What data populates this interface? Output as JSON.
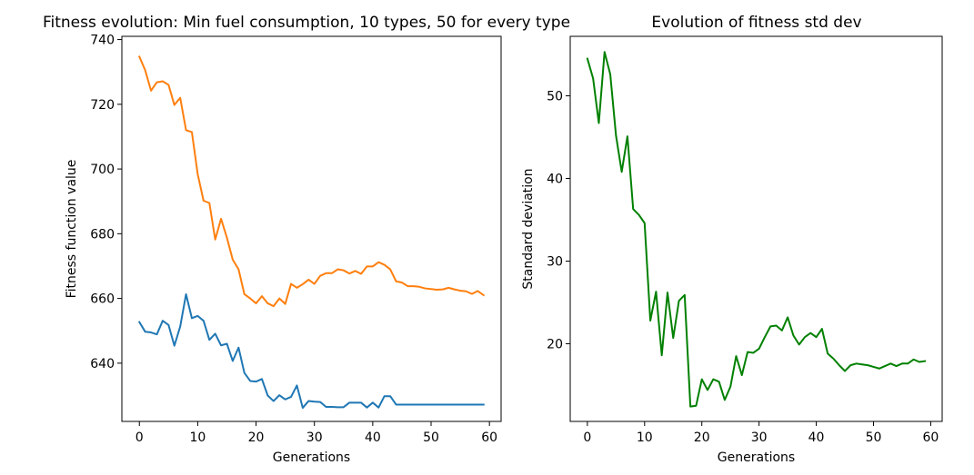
{
  "chart_data": [
    {
      "type": "line",
      "title": "Fitness evolution: Min fuel consumption, 10 types, 50 for every type",
      "xlabel": "Generations",
      "ylabel": "Fitness function value",
      "xlim": [
        -3,
        62
      ],
      "ylim": [
        622,
        741
      ],
      "xticks": [
        0,
        10,
        20,
        30,
        40,
        50,
        60
      ],
      "yticks": [
        640,
        660,
        680,
        700,
        720,
        740
      ],
      "grid": false,
      "series": [
        {
          "color": "#ff7f0e",
          "x": [
            0,
            1,
            2,
            3,
            4,
            5,
            6,
            7,
            8,
            9,
            10,
            11,
            12,
            13,
            14,
            15,
            16,
            17,
            18,
            19,
            20,
            21,
            22,
            23,
            24,
            25,
            26,
            27,
            28,
            29,
            30,
            31,
            32,
            33,
            34,
            35,
            36,
            37,
            38,
            39,
            40,
            41,
            42,
            43,
            44,
            45,
            46,
            47,
            48,
            49,
            50,
            51,
            52,
            53,
            54,
            55,
            56,
            57,
            58,
            59
          ],
          "values": [
            734.7,
            730.5,
            724.2,
            726.8,
            727.1,
            726.0,
            719.8,
            722.0,
            712.0,
            711.4,
            698.4,
            690.2,
            689.5,
            678.2,
            684.6,
            678.8,
            672.0,
            669.0,
            661.3,
            660.0,
            658.5,
            660.7,
            658.5,
            657.6,
            660.0,
            658.3,
            664.5,
            663.3,
            664.4,
            665.8,
            664.5,
            667.0,
            667.8,
            667.8,
            669.0,
            668.7,
            667.7,
            668.5,
            667.6,
            669.9,
            669.9,
            671.2,
            670.4,
            669.0,
            665.3,
            664.9,
            663.8,
            663.8,
            663.6,
            663.1,
            662.9,
            662.7,
            662.8,
            663.3,
            662.8,
            662.4,
            662.2,
            661.4,
            662.3,
            661.0
          ]
        },
        {
          "color": "#1f77b4",
          "x": [
            0,
            1,
            2,
            3,
            4,
            5,
            6,
            7,
            8,
            9,
            10,
            11,
            12,
            13,
            14,
            15,
            16,
            17,
            18,
            19,
            20,
            21,
            22,
            23,
            24,
            25,
            26,
            27,
            28,
            29,
            30,
            31,
            32,
            33,
            34,
            35,
            36,
            37,
            38,
            39,
            40,
            41,
            42,
            43,
            44,
            45,
            46,
            47,
            48,
            49,
            50,
            51,
            52,
            53,
            54,
            55,
            56,
            57,
            58,
            59
          ],
          "values": [
            652.7,
            649.7,
            649.5,
            648.9,
            653.1,
            651.8,
            645.4,
            651.3,
            661.3,
            653.9,
            654.6,
            653.1,
            647.2,
            649.1,
            645.5,
            646.0,
            640.7,
            644.8,
            637.0,
            634.5,
            634.3,
            635.1,
            630.0,
            628.3,
            630.1,
            628.8,
            629.6,
            633.1,
            626.2,
            628.3,
            628.1,
            628.0,
            626.5,
            626.5,
            626.4,
            626.4,
            627.8,
            627.8,
            627.8,
            626.3,
            627.8,
            626.3,
            629.8,
            629.8,
            627.2,
            627.2,
            627.2,
            627.2,
            627.2,
            627.2,
            627.2,
            627.2,
            627.2,
            627.2,
            627.2,
            627.2,
            627.2,
            627.2,
            627.2,
            627.2
          ]
        }
      ]
    },
    {
      "type": "line",
      "title": "Evolution of fitness std dev",
      "xlabel": "Generations",
      "ylabel": "Standard deviation",
      "xlim": [
        -3,
        62
      ],
      "ylim": [
        10.6,
        57.2
      ],
      "xticks": [
        0,
        10,
        20,
        30,
        40,
        50,
        60
      ],
      "yticks": [
        20,
        30,
        40,
        50
      ],
      "grid": false,
      "series": [
        {
          "color": "#008000",
          "x": [
            0,
            1,
            2,
            3,
            4,
            5,
            6,
            7,
            8,
            9,
            10,
            11,
            12,
            13,
            14,
            15,
            16,
            17,
            18,
            19,
            20,
            21,
            22,
            23,
            24,
            25,
            26,
            27,
            28,
            29,
            30,
            31,
            32,
            33,
            34,
            35,
            36,
            37,
            38,
            39,
            40,
            41,
            42,
            43,
            44,
            45,
            46,
            47,
            48,
            49,
            50,
            51,
            52,
            53,
            54,
            55,
            56,
            57,
            58,
            59
          ],
          "values": [
            54.5,
            52.1,
            46.7,
            55.3,
            52.6,
            45.2,
            40.8,
            45.1,
            36.3,
            35.6,
            34.6,
            22.8,
            26.3,
            18.6,
            26.2,
            20.7,
            25.2,
            25.9,
            12.4,
            12.5,
            15.7,
            14.4,
            15.7,
            15.4,
            13.2,
            14.8,
            18.5,
            16.2,
            19.0,
            18.9,
            19.4,
            20.8,
            22.1,
            22.2,
            21.6,
            23.2,
            21.0,
            19.9,
            20.8,
            21.3,
            20.8,
            21.8,
            18.8,
            18.2,
            17.4,
            16.7,
            17.4,
            17.6,
            17.5,
            17.4,
            17.2,
            17.0,
            17.3,
            17.6,
            17.3,
            17.6,
            17.6,
            18.1,
            17.8,
            17.9
          ]
        }
      ]
    }
  ]
}
